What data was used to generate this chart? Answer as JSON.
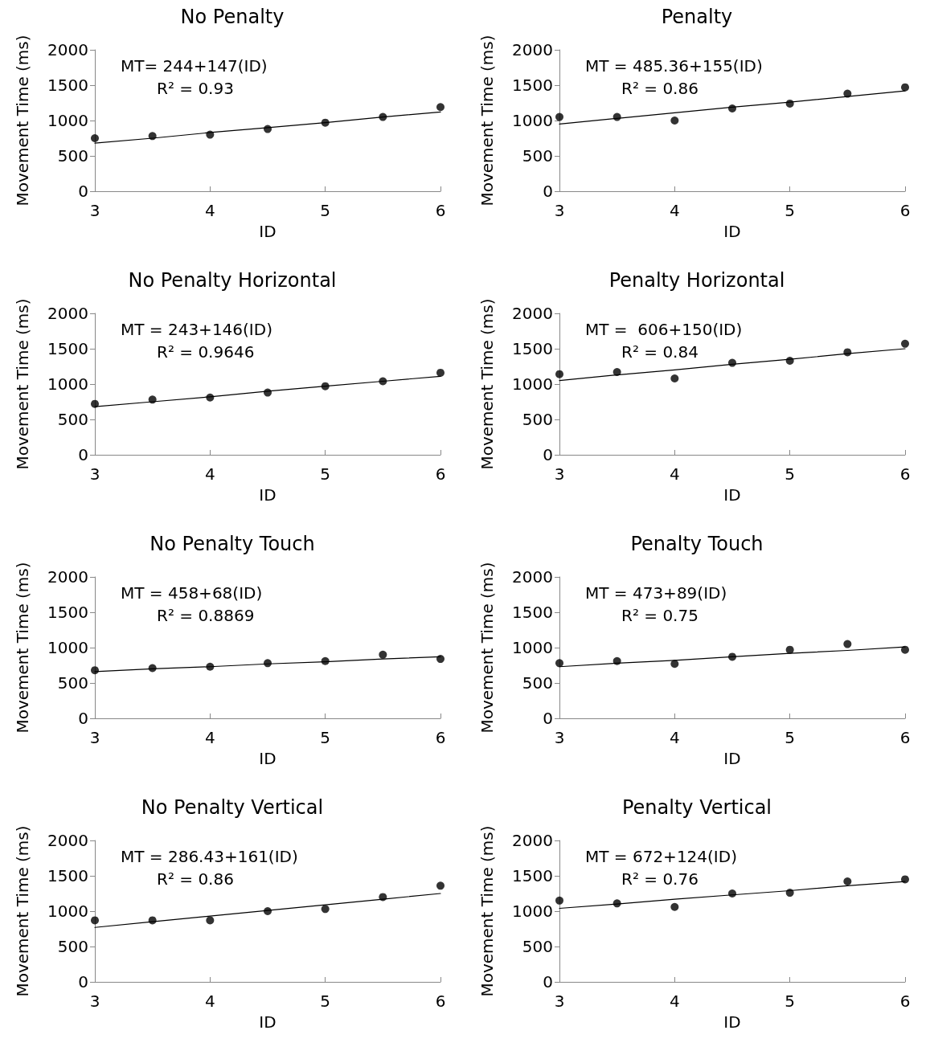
{
  "chart_data": [
    {
      "type": "scatter",
      "title": "No Penalty",
      "xlabel": "ID",
      "ylabel": "Movement Time (ms)",
      "x": [
        3,
        3.5,
        4,
        4.5,
        5,
        5.5,
        6
      ],
      "xlim": [
        3,
        6
      ],
      "xticks": [
        3,
        4,
        5,
        6
      ],
      "ylim": [
        0,
        2000
      ],
      "yticks": [
        0,
        500,
        1000,
        1500,
        2000
      ],
      "grid": false,
      "marker": "circle",
      "annotations": [
        "MT= 244+147(ID)",
        "R² = 0.93"
      ],
      "series": [
        {
          "color": "#000000",
          "values": [
            750,
            780,
            800,
            880,
            970,
            1050,
            1190
          ]
        },
        {
          "type": "line",
          "marker": "none",
          "color": "#000000",
          "values": [
            680,
            750,
            830,
            900,
            970,
            1050,
            1120
          ]
        }
      ]
    },
    {
      "type": "scatter",
      "title": "Penalty",
      "xlabel": "ID",
      "ylabel": "Movement Time (ms)",
      "x": [
        3,
        3.5,
        4,
        4.5,
        5,
        5.5,
        6
      ],
      "xlim": [
        3,
        6
      ],
      "xticks": [
        3,
        4,
        5,
        6
      ],
      "ylim": [
        0,
        2000
      ],
      "yticks": [
        0,
        500,
        1000,
        1500,
        2000
      ],
      "grid": false,
      "marker": "circle",
      "annotations": [
        "MT = 485.36+155(ID)",
        "R² = 0.86"
      ],
      "series": [
        {
          "color": "#000000",
          "values": [
            1050,
            1050,
            1000,
            1170,
            1240,
            1380,
            1470
          ]
        },
        {
          "type": "line",
          "marker": "none",
          "color": "#000000",
          "values": [
            950,
            1030,
            1110,
            1190,
            1260,
            1340,
            1420
          ]
        }
      ]
    },
    {
      "type": "scatter",
      "title": "No Penalty Horizontal",
      "xlabel": "ID",
      "ylabel": "Movement Time (ms)",
      "x": [
        3,
        3.5,
        4,
        4.5,
        5,
        5.5,
        6
      ],
      "xlim": [
        3,
        6
      ],
      "xticks": [
        3,
        4,
        5,
        6
      ],
      "ylim": [
        0,
        2000
      ],
      "yticks": [
        0,
        500,
        1000,
        1500,
        2000
      ],
      "grid": false,
      "marker": "circle",
      "annotations": [
        "MT = 243+146(ID)",
        "R² = 0.9646"
      ],
      "series": [
        {
          "color": "#000000",
          "values": [
            720,
            780,
            810,
            880,
            970,
            1040,
            1160
          ]
        },
        {
          "type": "line",
          "marker": "none",
          "color": "#000000",
          "values": [
            680,
            750,
            820,
            900,
            970,
            1040,
            1110
          ]
        }
      ]
    },
    {
      "type": "scatter",
      "title": "Penalty Horizontal",
      "xlabel": "ID",
      "ylabel": "Movement Time (ms)",
      "x": [
        3,
        3.5,
        4,
        4.5,
        5,
        5.5,
        6
      ],
      "xlim": [
        3,
        6
      ],
      "xticks": [
        3,
        4,
        5,
        6
      ],
      "ylim": [
        0,
        2000
      ],
      "yticks": [
        0,
        500,
        1000,
        1500,
        2000
      ],
      "grid": false,
      "marker": "circle",
      "annotations": [
        "MT =  606+150(ID)",
        "R² = 0.84"
      ],
      "series": [
        {
          "color": "#000000",
          "values": [
            1140,
            1170,
            1080,
            1300,
            1330,
            1450,
            1570
          ]
        },
        {
          "type": "line",
          "marker": "none",
          "color": "#000000",
          "values": [
            1050,
            1130,
            1200,
            1280,
            1350,
            1430,
            1500
          ]
        }
      ]
    },
    {
      "type": "scatter",
      "title": "No Penalty Touch",
      "xlabel": "ID",
      "ylabel": "Movement Time (ms)",
      "x": [
        3,
        3.5,
        4,
        4.5,
        5,
        5.5,
        6
      ],
      "xlim": [
        3,
        6
      ],
      "xticks": [
        3,
        4,
        5,
        6
      ],
      "ylim": [
        0,
        2000
      ],
      "yticks": [
        0,
        500,
        1000,
        1500,
        2000
      ],
      "grid": false,
      "marker": "circle",
      "annotations": [
        "MT = 458+68(ID)",
        "R² = 0.8869"
      ],
      "series": [
        {
          "color": "#000000",
          "values": [
            680,
            710,
            730,
            780,
            810,
            900,
            840
          ]
        },
        {
          "type": "line",
          "marker": "none",
          "color": "#000000",
          "values": [
            660,
            700,
            730,
            770,
            800,
            840,
            870
          ]
        }
      ]
    },
    {
      "type": "scatter",
      "title": "Penalty Touch",
      "xlabel": "ID",
      "ylabel": "Movement Time (ms)",
      "x": [
        3,
        3.5,
        4,
        4.5,
        5,
        5.5,
        6
      ],
      "xlim": [
        3,
        6
      ],
      "xticks": [
        3,
        4,
        5,
        6
      ],
      "ylim": [
        0,
        2000
      ],
      "yticks": [
        0,
        500,
        1000,
        1500,
        2000
      ],
      "grid": false,
      "marker": "circle",
      "annotations": [
        "MT = 473+89(ID)",
        "R² = 0.75"
      ],
      "series": [
        {
          "color": "#000000",
          "values": [
            780,
            810,
            770,
            870,
            970,
            1050,
            970
          ]
        },
        {
          "type": "line",
          "marker": "none",
          "color": "#000000",
          "values": [
            730,
            780,
            820,
            870,
            920,
            960,
            1010
          ]
        }
      ]
    },
    {
      "type": "scatter",
      "title": "No Penalty Vertical",
      "xlabel": "ID",
      "ylabel": "Movement Time (ms)",
      "x": [
        3,
        3.5,
        4,
        4.5,
        5,
        5.5,
        6
      ],
      "xlim": [
        3,
        6
      ],
      "xticks": [
        3,
        4,
        5,
        6
      ],
      "ylim": [
        0,
        2000
      ],
      "yticks": [
        0,
        500,
        1000,
        1500,
        2000
      ],
      "grid": false,
      "marker": "circle",
      "annotations": [
        "MT = 286.43+161(ID)",
        "R² = 0.86"
      ],
      "series": [
        {
          "color": "#000000",
          "values": [
            870,
            870,
            870,
            1000,
            1030,
            1200,
            1360
          ]
        },
        {
          "type": "line",
          "marker": "none",
          "color": "#000000",
          "values": [
            770,
            850,
            930,
            1010,
            1090,
            1170,
            1250
          ]
        }
      ]
    },
    {
      "type": "scatter",
      "title": "Penalty Vertical",
      "xlabel": "ID",
      "ylabel": "Movement Time (ms)",
      "x": [
        3,
        3.5,
        4,
        4.5,
        5,
        5.5,
        6
      ],
      "xlim": [
        3,
        6
      ],
      "xticks": [
        3,
        4,
        5,
        6
      ],
      "ylim": [
        0,
        2000
      ],
      "yticks": [
        0,
        500,
        1000,
        1500,
        2000
      ],
      "grid": false,
      "marker": "circle",
      "annotations": [
        "MT = 672+124(ID)",
        "R² = 0.76"
      ],
      "series": [
        {
          "color": "#000000",
          "values": [
            1150,
            1110,
            1060,
            1250,
            1260,
            1420,
            1450
          ]
        },
        {
          "type": "line",
          "marker": "none",
          "color": "#000000",
          "values": [
            1040,
            1100,
            1170,
            1230,
            1290,
            1360,
            1420
          ]
        }
      ]
    }
  ]
}
